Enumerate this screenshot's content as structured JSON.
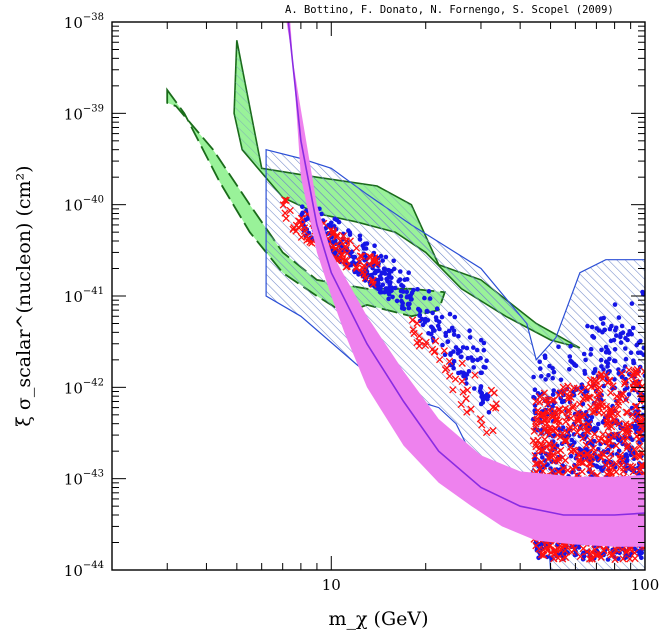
{
  "credit": "A. Bottino, F. Donato, N. Fornengo, S. Scopel  (2009)",
  "chart_data": {
    "type": "scatter",
    "title": "",
    "xlabel": "m_χ (GeV)",
    "ylabel": "ξ σ_scalar^(nucleon)  (cm²)",
    "x_scale": "log",
    "y_scale": "log",
    "xlim": [
      2,
      100
    ],
    "ylim": [
      1e-44,
      1e-38
    ],
    "x_ticks": [
      {
        "value": 10,
        "label": "10"
      },
      {
        "value": 100,
        "label": "100"
      }
    ],
    "y_ticks": [
      {
        "value": 1e-38,
        "base": "10",
        "exp": "−38"
      },
      {
        "value": 1e-39,
        "base": "10",
        "exp": "−39"
      },
      {
        "value": 1e-40,
        "base": "10",
        "exp": "−40"
      },
      {
        "value": 1e-41,
        "base": "10",
        "exp": "−41"
      },
      {
        "value": 1e-42,
        "base": "10",
        "exp": "−42"
      },
      {
        "value": 1e-43,
        "base": "10",
        "exp": "−43"
      },
      {
        "value": 1e-44,
        "base": "10",
        "exp": "−44"
      }
    ],
    "colors": {
      "green_fill": "#99f299",
      "green_edge": "#1a6b1a",
      "blue_edge": "#2b4fd6",
      "hatch": "#6f86c8",
      "magenta_fill": "#ee82ee",
      "magenta_line": "#8a2be2",
      "blue_points": "#1515e6",
      "red_points": "#ff1010"
    },
    "regions": {
      "green_solid": [
        [
          5,
          6.3e-39
        ],
        [
          6,
          2.5e-40
        ],
        [
          9,
          2e-40
        ],
        [
          14,
          1.6e-40
        ],
        [
          18,
          1e-40
        ],
        [
          22,
          2.2e-41
        ],
        [
          30,
          1.5e-41
        ],
        [
          45,
          5e-42
        ],
        [
          62,
          2.7e-42
        ],
        [
          50,
          3.3e-42
        ],
        [
          36,
          6e-42
        ],
        [
          26,
          1.2e-41
        ],
        [
          20,
          3e-41
        ],
        [
          16,
          5e-41
        ],
        [
          12,
          6.5e-41
        ],
        [
          9,
          8e-41
        ],
        [
          7,
          1.2e-40
        ],
        [
          5.2,
          4e-40
        ],
        [
          4.9,
          1e-39
        ]
      ],
      "green_dashed": [
        [
          3,
          1.8e-39
        ],
        [
          3.4,
          1e-39
        ],
        [
          4.4,
          1.8e-40
        ],
        [
          5.5,
          5e-41
        ],
        [
          7,
          1.8e-41
        ],
        [
          9,
          1e-41
        ],
        [
          11,
          6.5e-42
        ],
        [
          13,
          8e-42
        ],
        [
          18,
          6e-42
        ],
        [
          22,
          7e-42
        ],
        [
          23,
          1.1e-41
        ],
        [
          18,
          1.2e-41
        ],
        [
          13,
          1.2e-41
        ],
        [
          9,
          1.5e-41
        ],
        [
          7,
          3e-41
        ],
        [
          5.5,
          1e-40
        ],
        [
          4.2,
          4e-40
        ],
        [
          3.2,
          1.2e-39
        ],
        [
          3,
          1.3e-39
        ]
      ],
      "blue_hatched": [
        [
          6.2,
          4e-40
        ],
        [
          8,
          3.2e-40
        ],
        [
          10,
          2.5e-40
        ],
        [
          13,
          1.3e-40
        ],
        [
          18,
          6e-41
        ],
        [
          30,
          2e-41
        ],
        [
          42,
          5e-42
        ],
        [
          45,
          2e-42
        ],
        [
          52,
          3.5e-42
        ],
        [
          62,
          1.8e-41
        ],
        [
          75,
          2.5e-41
        ],
        [
          100,
          2.5e-41
        ],
        [
          100,
          1e-44
        ],
        [
          50,
          1e-44
        ],
        [
          48,
          7e-44
        ],
        [
          44,
          1.3e-43
        ],
        [
          42,
          9e-44
        ],
        [
          38,
          7e-44
        ],
        [
          34,
          1e-43
        ],
        [
          30,
          9e-44
        ],
        [
          28,
          1.8e-43
        ],
        [
          25,
          4e-43
        ],
        [
          22,
          6e-43
        ],
        [
          19,
          7e-43
        ],
        [
          16,
          8e-43
        ],
        [
          12,
          1.8e-42
        ],
        [
          8,
          6e-42
        ],
        [
          6.2,
          1e-41
        ]
      ],
      "magenta_band_upper": [
        [
          7.2,
          1e-38
        ],
        [
          8,
          1.1e-39
        ],
        [
          9,
          1e-40
        ],
        [
          10,
          3e-41
        ],
        [
          13,
          6e-42
        ],
        [
          17,
          1.5e-42
        ],
        [
          22,
          4.5e-43
        ],
        [
          30,
          1.8e-43
        ],
        [
          40,
          1.2e-43
        ],
        [
          60,
          1.05e-43
        ],
        [
          80,
          1.05e-43
        ],
        [
          100,
          1.1e-43
        ]
      ],
      "magenta_band_lower": [
        [
          100,
          1.8e-44
        ],
        [
          80,
          1.8e-44
        ],
        [
          60,
          1.9e-44
        ],
        [
          45,
          2.1e-44
        ],
        [
          35,
          3e-44
        ],
        [
          28,
          5e-44
        ],
        [
          22,
          9e-44
        ],
        [
          17,
          2.3e-43
        ],
        [
          13,
          1e-42
        ],
        [
          11,
          4e-42
        ],
        [
          10,
          1e-41
        ],
        [
          9,
          3e-41
        ],
        [
          8,
          2e-40
        ],
        [
          7.4,
          1e-38
        ]
      ],
      "magenta_center": [
        [
          7.3,
          1e-38
        ],
        [
          8,
          5e-40
        ],
        [
          9,
          6e-41
        ],
        [
          10,
          1.8e-41
        ],
        [
          13,
          3e-42
        ],
        [
          17,
          7e-43
        ],
        [
          22,
          2e-43
        ],
        [
          30,
          8e-44
        ],
        [
          40,
          5e-44
        ],
        [
          55,
          4e-44
        ],
        [
          80,
          4e-44
        ],
        [
          100,
          4.2e-44
        ]
      ]
    },
    "series": [
      {
        "marker": "dot",
        "color": "#1515e6",
        "clusters": [
          {
            "x": [
              8,
              18
            ],
            "y_upper": [
              1.3e-40,
              2e-41
            ],
            "y_lower": [
              5e-41,
              6e-42
            ],
            "n": 260
          },
          {
            "x": [
              18,
              32
            ],
            "y_upper": [
              2e-41,
              3e-42
            ],
            "y_lower": [
              6e-42,
              5e-43
            ],
            "n": 110
          },
          {
            "x": [
              44,
              100
            ],
            "y_upper": [
              2e-42,
              1.5e-41
            ],
            "y_lower": [
              1.3e-44,
              1.3e-44
            ],
            "n": 950
          }
        ]
      },
      {
        "marker": "x",
        "color": "#ff1010",
        "clusters": [
          {
            "x": [
              7,
              14
            ],
            "y_upper": [
              1.5e-40,
              2.5e-41
            ],
            "y_lower": [
              6e-41,
              1.2e-41
            ],
            "n": 90
          },
          {
            "x": [
              18,
              34
            ],
            "y_upper": [
              6e-42,
              8e-43
            ],
            "y_lower": [
              3e-42,
              2e-43
            ],
            "n": 40
          },
          {
            "x": [
              44,
              100
            ],
            "y_upper": [
              8e-43,
              2e-42
            ],
            "y_lower": [
              1.3e-44,
              1.3e-44
            ],
            "n": 650
          }
        ]
      }
    ]
  }
}
